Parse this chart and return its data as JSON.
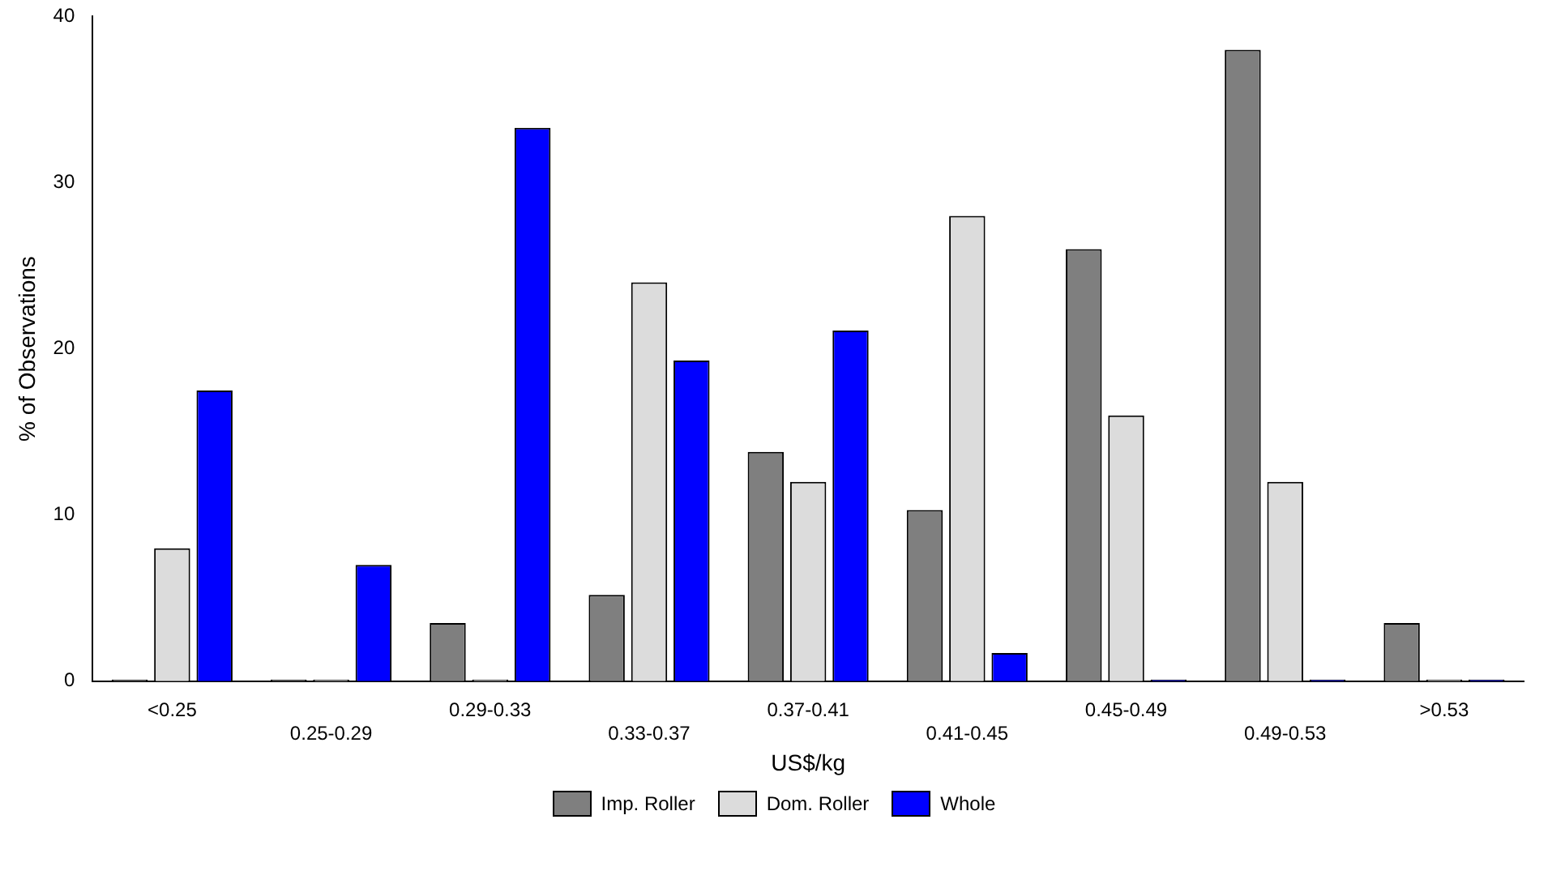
{
  "chart_data": {
    "type": "bar",
    "xlabel": "US$/kg",
    "ylabel": "% of Observations",
    "categories": [
      "<0.25",
      "0.25-0.29",
      "0.29-0.33",
      "0.33-0.37",
      "0.37-0.41",
      "0.41-0.45",
      "0.45-0.49",
      "0.49-0.53",
      ">0.53"
    ],
    "series": [
      {
        "name": "Imp. Roller",
        "color": "#7f7f7f",
        "values": [
          0,
          0,
          3.5,
          5.2,
          13.8,
          10.3,
          26,
          38,
          3.5
        ]
      },
      {
        "name": "Dom. Roller",
        "color": "#dcdcdc",
        "values": [
          8,
          0,
          0,
          24,
          12,
          28,
          16,
          12,
          0
        ]
      },
      {
        "name": "Whole",
        "color": "#0000ff",
        "values": [
          17.5,
          7,
          33.3,
          19.3,
          21.1,
          1.7,
          0,
          0,
          0
        ]
      }
    ],
    "ylim": [
      0,
      40
    ],
    "yticks": [
      0,
      10,
      20,
      30,
      40
    ],
    "grid": false,
    "legend": "bottom"
  }
}
